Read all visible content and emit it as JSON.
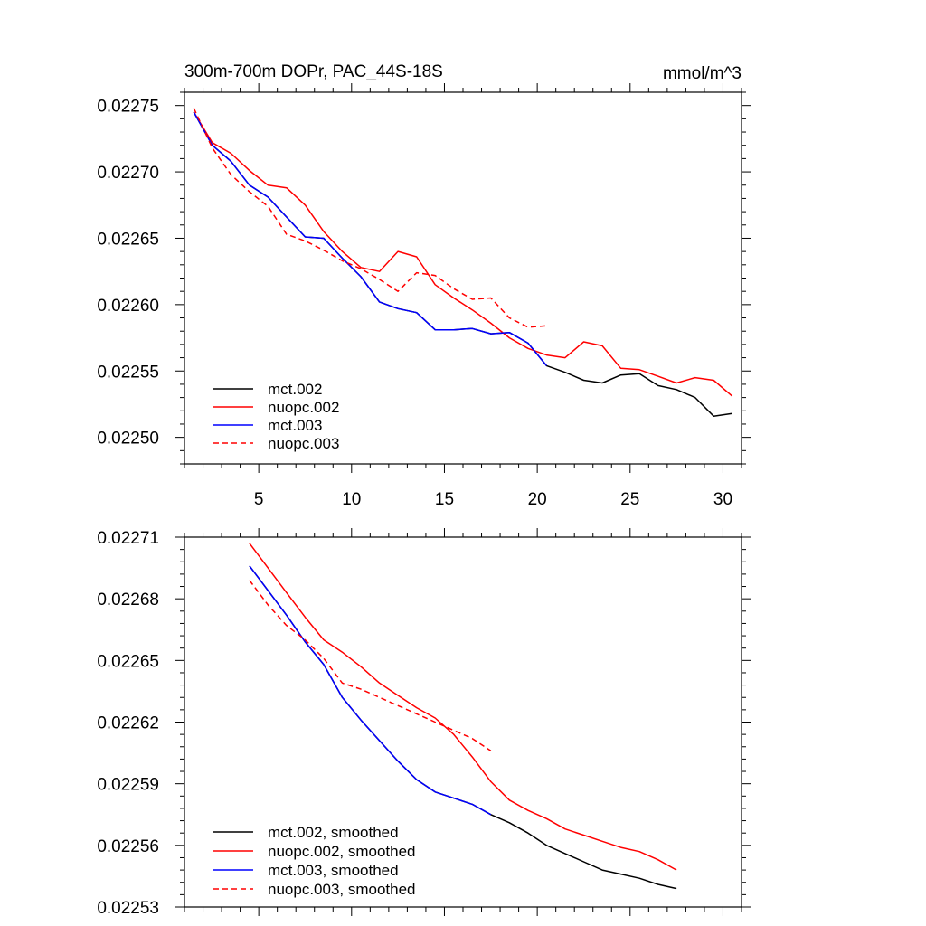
{
  "chart_data": [
    {
      "type": "line",
      "title": "300m-700m DOPr, PAC_44S-18S",
      "units": "mmol/m^3",
      "xlabel": "",
      "ylabel": "",
      "xlim": [
        1,
        31
      ],
      "ylim": [
        0.02248,
        0.02276
      ],
      "x_ticks": [
        5,
        10,
        15,
        20,
        25,
        30
      ],
      "x_tick_labels": [
        "5",
        "10",
        "15",
        "20",
        "25",
        "30"
      ],
      "y_ticks": [
        0.0225,
        0.02255,
        0.0226,
        0.02265,
        0.0227,
        0.02275
      ],
      "y_tick_labels": [
        "0.02250",
        "0.02255",
        "0.02260",
        "0.02265",
        "0.02270",
        "0.02275"
      ],
      "legend_position": "bottom-left",
      "series": [
        {
          "name": "mct.002",
          "color": "#000000",
          "dash": "solid",
          "x": [
            1.5,
            2.5,
            3.5,
            4.5,
            5.5,
            6.5,
            7.5,
            8.5,
            9.5,
            10.5,
            11.5,
            12.5,
            13.5,
            14.5,
            15.5,
            16.5,
            17.5,
            18.5,
            19.5,
            20.5,
            21.5,
            22.5,
            23.5,
            24.5,
            25.5,
            26.5,
            27.5,
            28.5,
            29.5,
            30.5
          ],
          "values": [
            0.022745,
            0.02272,
            0.022708,
            0.02269,
            0.022681,
            0.022666,
            0.022651,
            0.02265,
            0.022635,
            0.022621,
            0.022602,
            0.022597,
            0.022594,
            0.022581,
            0.022581,
            0.022582,
            0.022578,
            0.022579,
            0.022571,
            0.022554,
            0.022549,
            0.022543,
            0.022541,
            0.022547,
            0.022548,
            0.022539,
            0.022536,
            0.02253,
            0.022516,
            0.022518
          ]
        },
        {
          "name": "nuopc.002",
          "color": "#ff0000",
          "dash": "solid",
          "x": [
            1.5,
            2.5,
            3.5,
            4.5,
            5.5,
            6.5,
            7.5,
            8.5,
            9.5,
            10.5,
            11.5,
            12.5,
            13.5,
            14.5,
            15.5,
            16.5,
            17.5,
            18.5,
            19.5,
            20.5,
            21.5,
            22.5,
            23.5,
            24.5,
            25.5,
            26.5,
            27.5,
            28.5,
            29.5,
            30.5
          ],
          "values": [
            0.022745,
            0.022722,
            0.022714,
            0.022701,
            0.02269,
            0.022688,
            0.022675,
            0.022655,
            0.02264,
            0.022628,
            0.022625,
            0.02264,
            0.022636,
            0.022615,
            0.022605,
            0.022596,
            0.022586,
            0.022575,
            0.022567,
            0.022562,
            0.02256,
            0.022572,
            0.022569,
            0.022552,
            0.022551,
            0.022546,
            0.022541,
            0.022545,
            0.022543,
            0.022531
          ]
        },
        {
          "name": "mct.003",
          "color": "#0000ff",
          "dash": "solid",
          "x": [
            1.5,
            2.5,
            3.5,
            4.5,
            5.5,
            6.5,
            7.5,
            8.5,
            9.5,
            10.5,
            11.5,
            12.5,
            13.5,
            14.5,
            15.5,
            16.5,
            17.5,
            18.5,
            19.5,
            20.5
          ],
          "values": [
            0.022745,
            0.02272,
            0.022708,
            0.02269,
            0.022681,
            0.022666,
            0.022651,
            0.02265,
            0.022635,
            0.022621,
            0.022602,
            0.022597,
            0.022594,
            0.022581,
            0.022581,
            0.022582,
            0.022578,
            0.022579,
            0.022571,
            0.022554
          ]
        },
        {
          "name": "nuopc.003",
          "color": "#ff0000",
          "dash": "dashed",
          "x": [
            1.5,
            2.5,
            3.5,
            4.5,
            5.5,
            6.5,
            7.5,
            8.5,
            9.5,
            10.5,
            11.5,
            12.5,
            13.5,
            14.5,
            15.5,
            16.5,
            17.5,
            18.5,
            19.5,
            20.5
          ],
          "values": [
            0.022748,
            0.022718,
            0.022698,
            0.022685,
            0.022674,
            0.022653,
            0.022648,
            0.022641,
            0.022633,
            0.022627,
            0.022619,
            0.02261,
            0.022624,
            0.022622,
            0.022612,
            0.022604,
            0.022605,
            0.02259,
            0.022583,
            0.022584
          ]
        }
      ]
    },
    {
      "type": "line",
      "title": "",
      "xlabel": "",
      "ylabel": "",
      "xlim": [
        1,
        31
      ],
      "ylim": [
        0.02253,
        0.02271
      ],
      "x_ticks": [
        5,
        10,
        15,
        20,
        25,
        30
      ],
      "x_tick_labels": [],
      "y_ticks": [
        0.02253,
        0.02256,
        0.02259,
        0.02262,
        0.02265,
        0.02268,
        0.02271
      ],
      "y_tick_labels": [
        "0.02253",
        "0.02256",
        "0.02259",
        "0.02262",
        "0.02265",
        "0.02268",
        "0.02271"
      ],
      "legend_position": "bottom-left",
      "series": [
        {
          "name": "mct.002, smoothed",
          "color": "#000000",
          "dash": "solid",
          "x": [
            4.5,
            5.5,
            6.5,
            7.5,
            8.5,
            9.5,
            10.5,
            11.5,
            12.5,
            13.5,
            14.5,
            15.5,
            16.5,
            17.5,
            18.5,
            19.5,
            20.5,
            21.5,
            22.5,
            23.5,
            24.5,
            25.5,
            26.5,
            27.5
          ],
          "values": [
            0.022696,
            0.022684,
            0.022672,
            0.022659,
            0.022648,
            0.022632,
            0.022621,
            0.022611,
            0.022601,
            0.022592,
            0.022586,
            0.022583,
            0.02258,
            0.022575,
            0.022571,
            0.022566,
            0.02256,
            0.022556,
            0.022552,
            0.022548,
            0.022546,
            0.022544,
            0.022541,
            0.022539
          ]
        },
        {
          "name": "nuopc.002, smoothed",
          "color": "#ff0000",
          "dash": "solid",
          "x": [
            4.5,
            5.5,
            6.5,
            7.5,
            8.5,
            9.5,
            10.5,
            11.5,
            12.5,
            13.5,
            14.5,
            15.5,
            16.5,
            17.5,
            18.5,
            19.5,
            20.5,
            21.5,
            22.5,
            23.5,
            24.5,
            25.5,
            26.5,
            27.5
          ],
          "values": [
            0.022707,
            0.022695,
            0.022683,
            0.022671,
            0.02266,
            0.022654,
            0.022647,
            0.022639,
            0.022633,
            0.022627,
            0.022622,
            0.022614,
            0.022603,
            0.022591,
            0.022582,
            0.022577,
            0.022573,
            0.022568,
            0.022565,
            0.022562,
            0.022559,
            0.022557,
            0.022553,
            0.022548
          ]
        },
        {
          "name": "mct.003, smoothed",
          "color": "#0000ff",
          "dash": "solid",
          "x": [
            4.5,
            5.5,
            6.5,
            7.5,
            8.5,
            9.5,
            10.5,
            11.5,
            12.5,
            13.5,
            14.5,
            15.5,
            16.5,
            17.5
          ],
          "values": [
            0.022696,
            0.022684,
            0.022672,
            0.022659,
            0.022648,
            0.022632,
            0.022621,
            0.022611,
            0.022601,
            0.022592,
            0.022586,
            0.022583,
            0.02258,
            0.022575
          ]
        },
        {
          "name": "nuopc.003, smoothed",
          "color": "#ff0000",
          "dash": "dashed",
          "x": [
            4.5,
            5.5,
            6.5,
            7.5,
            8.5,
            9.5,
            10.5,
            11.5,
            12.5,
            13.5,
            14.5,
            15.5,
            16.5,
            17.5
          ],
          "values": [
            0.022689,
            0.022677,
            0.022667,
            0.02266,
            0.022651,
            0.022639,
            0.022636,
            0.022632,
            0.022628,
            0.022624,
            0.02262,
            0.022616,
            0.022612,
            0.022606
          ]
        }
      ]
    }
  ]
}
